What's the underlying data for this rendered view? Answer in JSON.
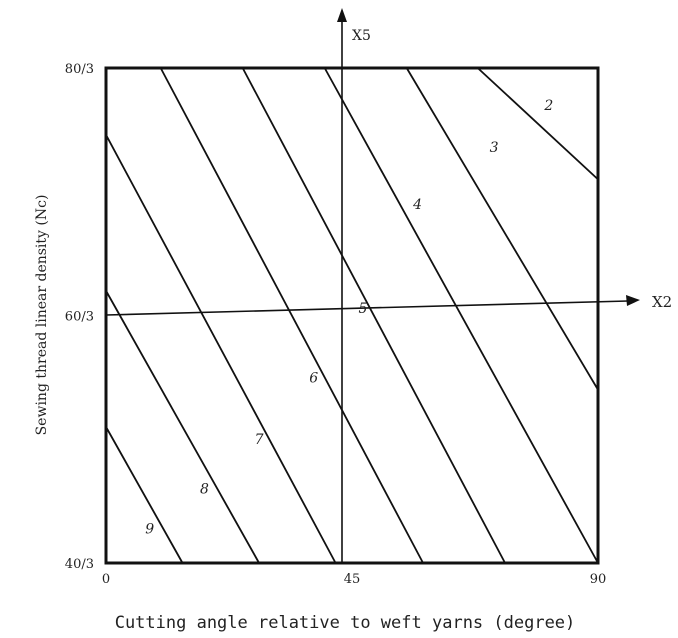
{
  "chart_data": {
    "type": "line",
    "title": "",
    "xlabel": "Cutting angle relative to weft yarns (degree)",
    "ylabel": "Sewing thread linear density (Nc)",
    "x_ticks": [
      {
        "value": 0,
        "label": "0"
      },
      {
        "value": 45,
        "label": "45"
      },
      {
        "value": 90,
        "label": "90"
      }
    ],
    "y_ticks": [
      {
        "value": -1,
        "label": "40/3"
      },
      {
        "value": 0,
        "label": "60/3"
      },
      {
        "value": 1,
        "label": "80/3"
      }
    ],
    "coded_axes": {
      "x_label": "X2",
      "y_label": "X5"
    },
    "xlim": [
      0,
      90
    ],
    "ylim": [
      -1,
      1
    ],
    "grid": false,
    "series": [
      {
        "label": "2",
        "points": [
          [
            68,
            1
          ],
          [
            90,
            0.55
          ]
        ],
        "label_at": [
          81,
          0.83
        ]
      },
      {
        "label": "3",
        "points": [
          [
            55,
            1
          ],
          [
            90,
            -0.3
          ]
        ],
        "label_at": [
          71,
          0.66
        ]
      },
      {
        "label": "4",
        "points": [
          [
            40,
            1
          ],
          [
            90,
            -1
          ]
        ],
        "label_at": [
          57,
          0.43
        ]
      },
      {
        "label": "5",
        "points": [
          [
            25,
            1
          ],
          [
            73,
            -1
          ]
        ],
        "label_at": [
          47,
          0.01
        ]
      },
      {
        "label": "6",
        "points": [
          [
            10,
            1
          ],
          [
            58,
            -1
          ]
        ],
        "label_at": [
          38,
          -0.27
        ]
      },
      {
        "label": "7",
        "points": [
          [
            0,
            0.73
          ],
          [
            42,
            -1
          ]
        ],
        "label_at": [
          28,
          -0.52
        ]
      },
      {
        "label": "8",
        "points": [
          [
            0,
            0.1
          ],
          [
            28,
            -1
          ]
        ],
        "label_at": [
          18,
          -0.72
        ]
      },
      {
        "label": "9",
        "points": [
          [
            0,
            -0.45
          ],
          [
            14,
            -1
          ]
        ],
        "label_at": [
          8,
          -0.88
        ]
      }
    ]
  }
}
